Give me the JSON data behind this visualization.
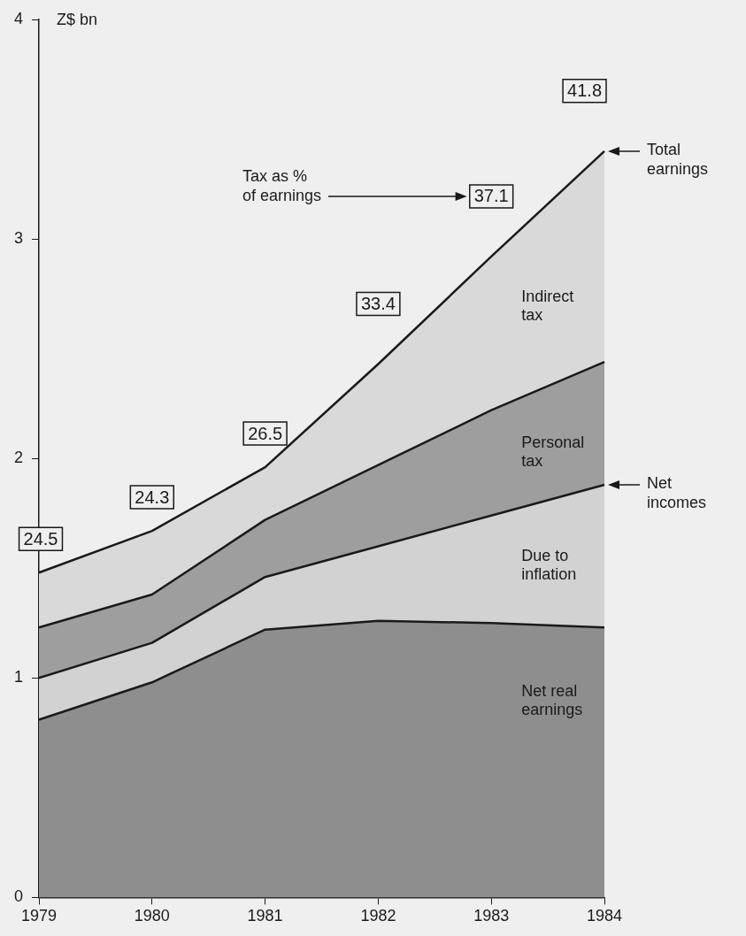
{
  "chart_data": {
    "type": "area",
    "stacked": true,
    "ylabel": "Z$ bn",
    "categories": [
      "1979",
      "1980",
      "1981",
      "1982",
      "1983",
      "1984"
    ],
    "series": [
      {
        "name": "Net real earnings",
        "color": "#8e8e8e",
        "values": [
          0.81,
          0.98,
          1.22,
          1.26,
          1.25,
          1.23
        ]
      },
      {
        "name": "Due to inflation",
        "color": "#d2d2d2",
        "values": [
          0.19,
          0.18,
          0.24,
          0.34,
          0.49,
          0.65
        ]
      },
      {
        "name": "Personal tax",
        "color": "#9e9e9e",
        "values": [
          0.23,
          0.22,
          0.26,
          0.37,
          0.48,
          0.56
        ]
      },
      {
        "name": "Indirect tax",
        "color": "#d9d9d9",
        "values": [
          0.25,
          0.29,
          0.24,
          0.46,
          0.7,
          0.96
        ]
      }
    ],
    "ylim": [
      0,
      4
    ],
    "yticks": [
      0,
      1,
      2,
      3,
      4
    ],
    "grid": false,
    "legend": false,
    "marker": "none",
    "line_style": "solid",
    "annotations": [
      "24.5",
      "24.3",
      "26.5",
      "33.4",
      "37.1",
      "41.8",
      "Tax as % of earnings",
      {
        "text": "Total earnings",
        "x": "1984",
        "y": 3.4
      },
      {
        "text": "Net incomes",
        "x": "1984",
        "y": 1.88
      }
    ]
  }
}
